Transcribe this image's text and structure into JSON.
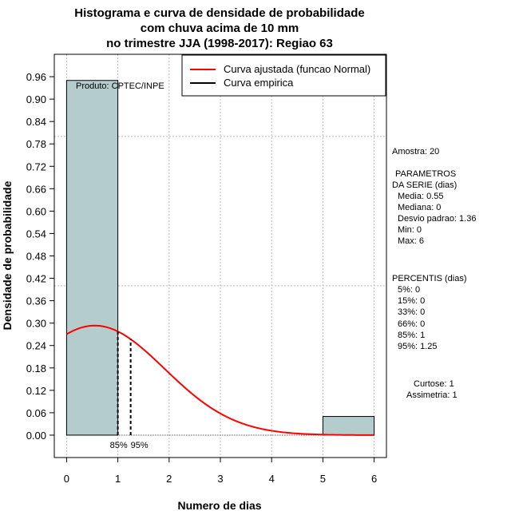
{
  "chart_data": {
    "type": "histogram",
    "title": [
      "Histograma e curva de densidade de probabilidade",
      "com chuva acima de 10 mm",
      "no trimestre JJA (1998-2017): Regiao 63"
    ],
    "xlabel": "Numero de dias",
    "ylabel": "Densidade de probabilidade",
    "xlim": [
      -0.24,
      6.24
    ],
    "ylim": [
      -0.06,
      1.02
    ],
    "xticks": [
      "0",
      "1",
      "2",
      "3",
      "4",
      "5",
      "6"
    ],
    "yticks": [
      "0.00",
      "0.06",
      "0.12",
      "0.18",
      "0.24",
      "0.30",
      "0.36",
      "0.42",
      "0.48",
      "0.54",
      "0.60",
      "0.66",
      "0.72",
      "0.78",
      "0.84",
      "0.90",
      "0.96"
    ],
    "bars": [
      {
        "x0": 0,
        "x1": 1,
        "value": 0.95
      },
      {
        "x0": 5,
        "x1": 6,
        "value": 0.05
      }
    ],
    "normal_fit": {
      "name": "Curva ajustada (funcao Normal)",
      "mean": 0.55,
      "sd": 1.36,
      "color": "#ff0000"
    },
    "empirical": {
      "name": "Curva empirica",
      "color": "#000000"
    },
    "percentile_lines": [
      {
        "label": "85%",
        "x": 1.0
      },
      {
        "label": "95%",
        "x": 1.25
      }
    ],
    "hlines": [
      0.4,
      0.8
    ],
    "credit": "Produto: CPTEC/INPE",
    "legend_position": "top-right"
  },
  "side_panel": {
    "amostra": "Amostra: 20",
    "parametros_lines": [
      "PARAMETROS",
      "DA SERIE (dias)",
      "Media: 0.55",
      "Mediana: 0",
      "Desvio padrao: 1.36",
      "Min: 0",
      "Max: 6"
    ],
    "percentis_lines": [
      "PERCENTIS (dias)",
      "5%: 0",
      "15%: 0",
      "33%: 0",
      "66%: 0",
      "85%: 1",
      "95%: 1.25"
    ],
    "curtose": "Curtose: 1",
    "assimetria": "Assimetria: 1"
  },
  "colors": {
    "bar_fill": "#b4cccc",
    "bar_stroke": "#000000",
    "grid": "#bbbbbb",
    "fit": "#ff0000"
  }
}
